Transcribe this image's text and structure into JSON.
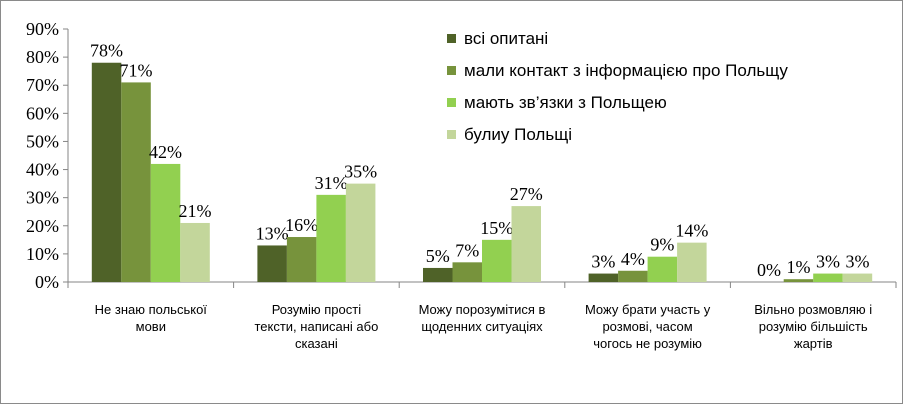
{
  "chart_data": {
    "type": "bar",
    "categories": [
      [
        "Не знаю польської",
        "мови"
      ],
      [
        "Розумію прості",
        "тексти, написані або",
        "сказані"
      ],
      [
        "Можу порозумітися в",
        "щоденних ситуаціях"
      ],
      [
        "Можу брати участь у",
        "розмові, часом",
        "чогось не розумію"
      ],
      [
        "Вільно розмовляю і",
        "розумію більшість",
        "жартів"
      ]
    ],
    "series": [
      {
        "name": "всі опитані",
        "color": "#4f6228",
        "values": [
          78,
          13,
          5,
          3,
          0
        ]
      },
      {
        "name": "мали контакт з інформацією про Польщу",
        "color": "#77933c",
        "values": [
          71,
          16,
          7,
          4,
          1
        ]
      },
      {
        "name": "мають зв’язки з Польщею",
        "color": "#92d050",
        "values": [
          42,
          31,
          15,
          9,
          3
        ]
      },
      {
        "name": "булиу Польщі",
        "color": "#c3d69b",
        "values": [
          21,
          35,
          27,
          14,
          3
        ]
      }
    ],
    "ylim": [
      0,
      90
    ],
    "yticks": [
      0,
      10,
      20,
      30,
      40,
      50,
      60,
      70,
      80,
      90
    ],
    "tick_suffix": "%",
    "grid": false,
    "legend_position": "top-right",
    "data_labels": true
  }
}
